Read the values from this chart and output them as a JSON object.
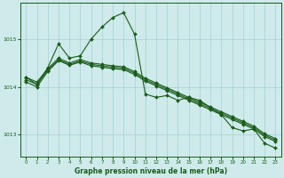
{
  "title": "Graphe pression niveau de la mer (hPa)",
  "background_color": "#ceeaea",
  "grid_color": "#a8d0d0",
  "line_color": "#1a5c1a",
  "xlim": [
    -0.5,
    23.5
  ],
  "ylim": [
    1012.55,
    1015.75
  ],
  "yticks": [
    1013,
    1014,
    1015
  ],
  "xticks": [
    0,
    1,
    2,
    3,
    4,
    5,
    6,
    7,
    8,
    9,
    10,
    11,
    12,
    13,
    14,
    15,
    16,
    17,
    18,
    19,
    20,
    21,
    22,
    23
  ],
  "series1": [
    1014.2,
    1014.05,
    1014.4,
    1014.9,
    1014.6,
    1014.65,
    1015.0,
    1015.25,
    1015.45,
    1015.55,
    1015.1,
    1013.85,
    1013.78,
    1013.82,
    1013.72,
    1013.78,
    1013.72,
    1013.57,
    1013.42,
    1013.15,
    1013.08,
    1013.12,
    1012.82,
    1012.72
  ],
  "series2": [
    1014.2,
    1014.1,
    1014.38,
    1014.6,
    1014.5,
    1014.57,
    1014.5,
    1014.47,
    1014.44,
    1014.42,
    1014.32,
    1014.18,
    1014.08,
    1013.98,
    1013.88,
    1013.78,
    1013.68,
    1013.58,
    1013.48,
    1013.38,
    1013.28,
    1013.18,
    1013.02,
    1012.92
  ],
  "series3": [
    1014.1,
    1014.0,
    1014.32,
    1014.55,
    1014.45,
    1014.52,
    1014.44,
    1014.41,
    1014.38,
    1014.36,
    1014.26,
    1014.12,
    1014.02,
    1013.92,
    1013.82,
    1013.72,
    1013.62,
    1013.52,
    1013.42,
    1013.32,
    1013.22,
    1013.12,
    1012.96,
    1012.86
  ],
  "series4": [
    1014.15,
    1014.05,
    1014.35,
    1014.57,
    1014.47,
    1014.54,
    1014.47,
    1014.44,
    1014.41,
    1014.39,
    1014.29,
    1014.15,
    1014.05,
    1013.95,
    1013.85,
    1013.75,
    1013.65,
    1013.55,
    1013.45,
    1013.35,
    1013.25,
    1013.15,
    1012.99,
    1012.89
  ]
}
